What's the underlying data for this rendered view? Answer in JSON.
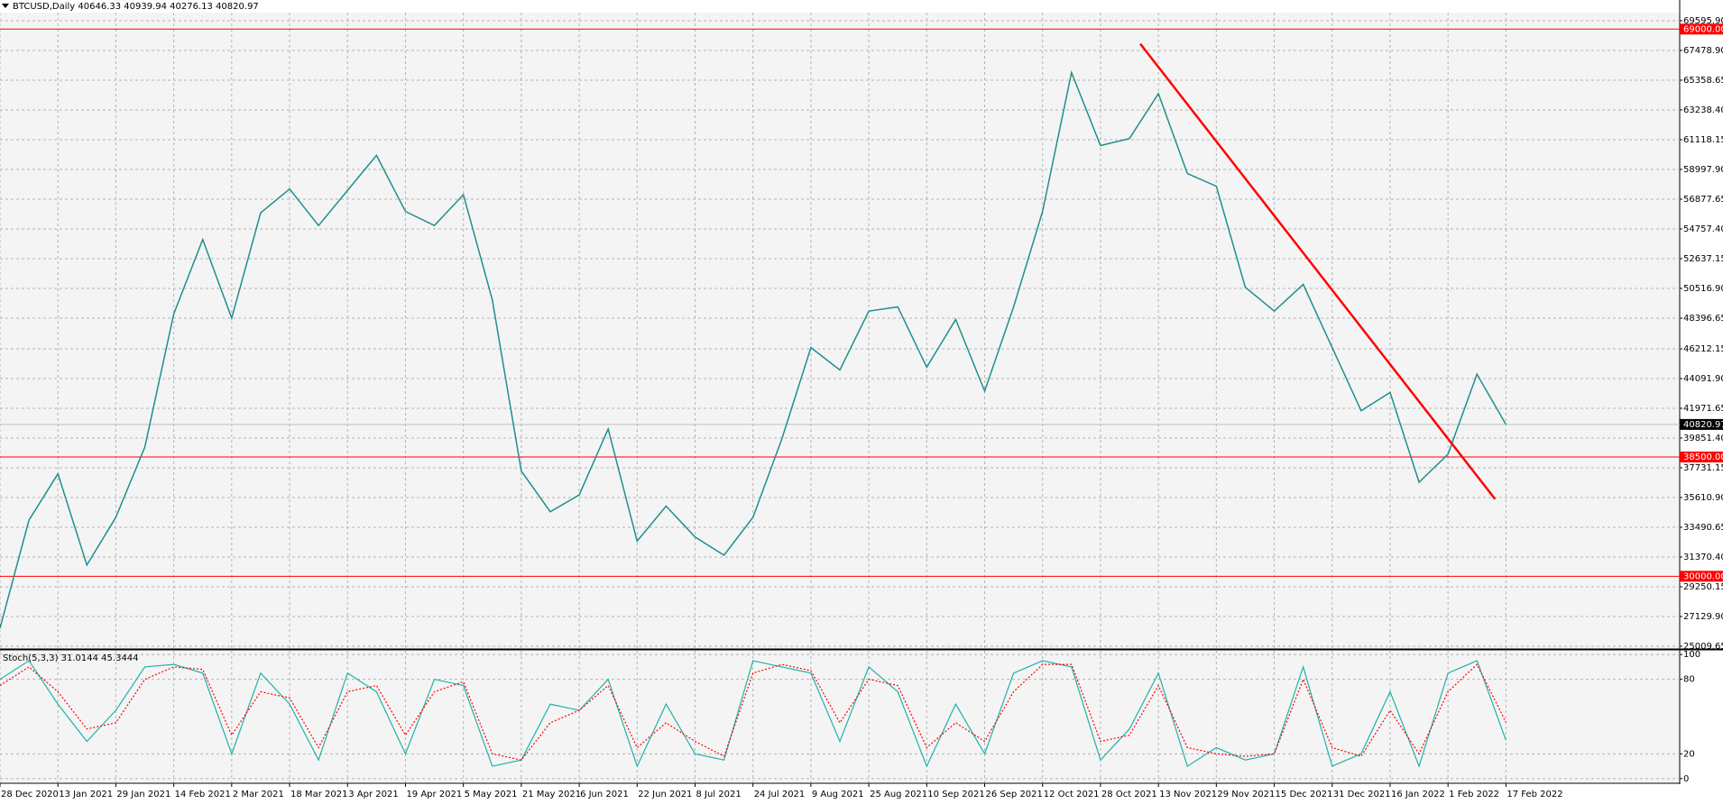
{
  "chart_data": [
    {
      "type": "line",
      "title": "BTCUSD,Daily  40646.33 40939.94 40276.13 40820.97",
      "x": [
        "2020-12-28",
        "2021-01-05",
        "2021-01-13",
        "2021-01-21",
        "2021-01-29",
        "2021-02-06",
        "2021-02-14",
        "2021-02-22",
        "2021-03-02",
        "2021-03-10",
        "2021-03-18",
        "2021-03-26",
        "2021-04-03",
        "2021-04-11",
        "2021-04-19",
        "2021-04-27",
        "2021-05-05",
        "2021-05-13",
        "2021-05-21",
        "2021-05-29",
        "2021-06-06",
        "2021-06-14",
        "2021-06-22",
        "2021-06-30",
        "2021-07-08",
        "2021-07-16",
        "2021-07-24",
        "2021-08-01",
        "2021-08-09",
        "2021-08-17",
        "2021-08-25",
        "2021-09-02",
        "2021-09-10",
        "2021-09-18",
        "2021-09-26",
        "2021-10-04",
        "2021-10-12",
        "2021-10-20",
        "2021-10-28",
        "2021-11-05",
        "2021-11-13",
        "2021-11-21",
        "2021-11-29",
        "2021-12-07",
        "2021-12-15",
        "2021-12-23",
        "2021-12-31",
        "2022-01-08",
        "2022-01-16",
        "2022-01-24",
        "2022-02-01",
        "2022-02-09",
        "2022-02-17"
      ],
      "values": [
        26300,
        34000,
        37300,
        30800,
        34200,
        39200,
        48700,
        54000,
        48400,
        55900,
        57600,
        55000,
        57500,
        60000,
        56000,
        55000,
        57200,
        49700,
        37500,
        34600,
        35800,
        40500,
        32500,
        35000,
        32800,
        31500,
        34200,
        39800,
        46300,
        44700,
        48900,
        49200,
        44900,
        48300,
        43200,
        49200,
        56000,
        65900,
        60700,
        61200,
        64400,
        58700,
        57800,
        50600,
        48900,
        50800,
        46300,
        41800,
        43100,
        36700,
        38700,
        44400,
        40820.97
      ],
      "color": "#1f8f8f",
      "xlim": [
        "2020-12-28",
        "2022-04-06"
      ],
      "ylim": [
        24817,
        70174
      ],
      "yticks": [
        {
          "value": 69595.9,
          "label": "69595.90"
        },
        {
          "value": 67478.9,
          "label": "67478.90"
        },
        65358.65,
        {
          "value": 63238.4,
          "label": "63238.40"
        },
        61118.15,
        {
          "value": 58997.9,
          "label": "58997.90"
        },
        56877.65,
        {
          "value": 54757.4,
          "label": "54757.40"
        },
        52637.15,
        {
          "value": 50516.9,
          "label": "50516.90"
        },
        48396.65,
        46212.15,
        {
          "value": 44091.9,
          "label": "44091.90"
        },
        41971.65,
        {
          "value": 39851.4,
          "label": "39851.40"
        },
        37731.15,
        {
          "value": 35610.9,
          "label": "35610.90"
        },
        33490.65,
        {
          "value": 31370.4,
          "label": "31370.40"
        },
        29250.15,
        {
          "value": 27129.9,
          "label": "27129.90"
        },
        25009.65
      ],
      "xticks": [
        {
          "value": "2020-12-28",
          "label": "28 Dec 2020"
        },
        {
          "value": "2021-01-13",
          "label": "13 Jan 2021"
        },
        {
          "value": "2021-01-29",
          "label": "29 Jan 2021"
        },
        {
          "value": "2021-02-14",
          "label": "14 Feb 2021"
        },
        {
          "value": "2021-03-02",
          "label": "2 Mar 2021"
        },
        {
          "value": "2021-03-18",
          "label": "18 Mar 2021"
        },
        {
          "value": "2021-04-03",
          "label": "3 Apr 2021"
        },
        {
          "value": "2021-04-19",
          "label": "19 Apr 2021"
        },
        {
          "value": "2021-05-05",
          "label": "5 May 2021"
        },
        {
          "value": "2021-05-21",
          "label": "21 May 2021"
        },
        {
          "value": "2021-06-06",
          "label": "6 Jun 2021"
        },
        {
          "value": "2021-06-22",
          "label": "22 Jun 2021"
        },
        {
          "value": "2021-07-08",
          "label": "8 Jul 2021"
        },
        {
          "value": "2021-07-24",
          "label": "24 Jul 2021"
        },
        {
          "value": "2021-08-09",
          "label": "9 Aug 2021"
        },
        {
          "value": "2021-08-25",
          "label": "25 Aug 2021"
        },
        {
          "value": "2021-09-10",
          "label": "10 Sep 2021"
        },
        {
          "value": "2021-09-26",
          "label": "26 Sep 2021"
        },
        {
          "value": "2021-10-12",
          "label": "12 Oct 2021"
        },
        {
          "value": "2021-10-28",
          "label": "28 Oct 2021"
        },
        {
          "value": "2021-11-13",
          "label": "13 Nov 2021"
        },
        {
          "value": "2021-11-29",
          "label": "29 Nov 2021"
        },
        {
          "value": "2021-12-15",
          "label": "15 Dec 2021"
        },
        {
          "value": "2021-12-31",
          "label": "31 Dec 2021"
        },
        {
          "value": "2022-01-16",
          "label": "16 Jan 2022"
        },
        {
          "value": "2022-02-01",
          "label": "1 Feb 2022"
        },
        {
          "value": "2022-02-17",
          "label": "17 Feb 2022"
        }
      ],
      "grid": true,
      "hlines": [
        {
          "value": 69000,
          "label": "69000.00",
          "color": "#ff0000"
        },
        {
          "value": 38500,
          "label": "38500.00",
          "color": "#ff0000"
        },
        {
          "value": 30000,
          "label": "30000.00",
          "color": "#ff0000"
        },
        {
          "value": 40820.97,
          "label": "40820.97",
          "color": "#000000"
        }
      ],
      "trendline": {
        "x": [
          "2021-11-08",
          "2022-02-14"
        ],
        "values": [
          67950,
          35500
        ],
        "color": "#ff0000"
      }
    },
    {
      "type": "line",
      "title": "Stoch(5,3,3) 31.0144 45.3444",
      "x": [
        "2020-12-28",
        "2021-01-05",
        "2021-01-13",
        "2021-01-21",
        "2021-01-29",
        "2021-02-06",
        "2021-02-14",
        "2021-02-22",
        "2021-03-02",
        "2021-03-10",
        "2021-03-18",
        "2021-03-26",
        "2021-04-03",
        "2021-04-11",
        "2021-04-19",
        "2021-04-27",
        "2021-05-05",
        "2021-05-13",
        "2021-05-21",
        "2021-05-29",
        "2021-06-06",
        "2021-06-14",
        "2021-06-22",
        "2021-06-30",
        "2021-07-08",
        "2021-07-16",
        "2021-07-24",
        "2021-08-01",
        "2021-08-09",
        "2021-08-17",
        "2021-08-25",
        "2021-09-02",
        "2021-09-10",
        "2021-09-18",
        "2021-09-26",
        "2021-10-04",
        "2021-10-12",
        "2021-10-20",
        "2021-10-28",
        "2021-11-05",
        "2021-11-13",
        "2021-11-21",
        "2021-11-29",
        "2021-12-07",
        "2021-12-15",
        "2021-12-23",
        "2021-12-31",
        "2022-01-08",
        "2022-01-16",
        "2022-01-24",
        "2022-02-01",
        "2022-02-09",
        "2022-02-17"
      ],
      "series": [
        {
          "color": "#20b2aa",
          "dashed": false,
          "values": [
            80,
            95,
            60,
            30,
            55,
            90,
            92,
            85,
            20,
            85,
            60,
            15,
            85,
            70,
            20,
            80,
            75,
            10,
            15,
            60,
            55,
            80,
            10,
            60,
            20,
            15,
            95,
            90,
            85,
            30,
            90,
            70,
            10,
            60,
            20,
            85,
            95,
            90,
            15,
            40,
            85,
            10,
            25,
            15,
            20,
            90,
            10,
            20,
            70,
            10,
            85,
            95,
            31.0144
          ]
        },
        {
          "color": "#ff0000",
          "dashed": true,
          "values": [
            75,
            90,
            70,
            40,
            45,
            80,
            90,
            88,
            35,
            70,
            65,
            25,
            70,
            75,
            35,
            70,
            78,
            20,
            15,
            45,
            55,
            75,
            25,
            45,
            30,
            18,
            85,
            92,
            87,
            45,
            80,
            75,
            25,
            45,
            30,
            70,
            92,
            92,
            30,
            35,
            75,
            25,
            20,
            18,
            20,
            80,
            25,
            18,
            55,
            20,
            70,
            92,
            45.3444
          ]
        }
      ],
      "xlim": [
        "2020-12-28",
        "2022-04-06"
      ],
      "ylim": [
        -3,
        103
      ],
      "yticks": [
        100,
        80,
        20,
        0
      ],
      "grid": true
    }
  ]
}
